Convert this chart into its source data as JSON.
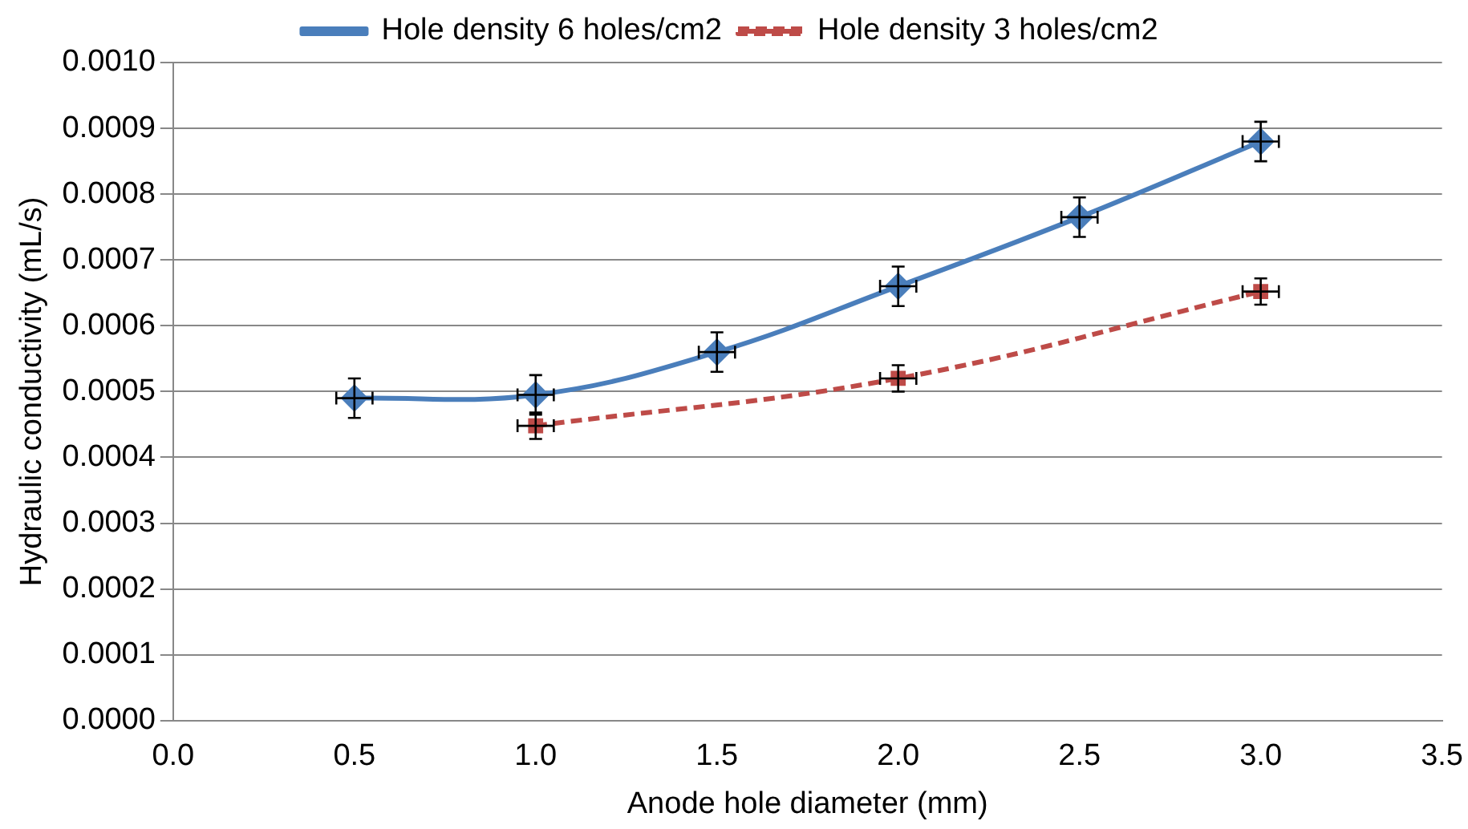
{
  "chart_data": {
    "type": "line",
    "xlabel": "Anode hole diameter (mm)",
    "ylabel": "Hydraulic conductivity (mL/s)",
    "series": [
      {
        "name": "Hole density 6 holes/cm2",
        "color": "#4a7ebb",
        "marker": "diamond",
        "line_style": "solid",
        "x": [
          0.5,
          1.0,
          1.5,
          2.0,
          2.5,
          3.0
        ],
        "values": [
          0.00049,
          0.000495,
          0.00056,
          0.00066,
          0.000765,
          0.00088
        ],
        "errors": [
          3e-05,
          3e-05,
          3e-05,
          3e-05,
          3e-05,
          3e-05
        ],
        "xerrors": [
          0.05,
          0.05,
          0.05,
          0.05,
          0.05,
          0.05
        ]
      },
      {
        "name": "Hole density 3 holes/cm2",
        "color": "#be4b48",
        "marker": "square",
        "line_style": "dashed",
        "x": [
          1.0,
          2.0,
          3.0
        ],
        "values": [
          0.000448,
          0.00052,
          0.000652
        ],
        "errors": [
          2e-05,
          2e-05,
          2e-05
        ],
        "xerrors": [
          0.05,
          0.05,
          0.05
        ]
      }
    ],
    "xlim": [
      0,
      3.5
    ],
    "xticks": [
      {
        "value": 0,
        "label": "0.0"
      },
      0.5,
      {
        "value": 1,
        "label": "1.0"
      },
      1.5,
      {
        "value": 2,
        "label": "2.0"
      },
      2.5,
      {
        "value": 3,
        "label": "3.0"
      },
      3.5
    ],
    "ylim": [
      0,
      0.001
    ],
    "yticks": [
      {
        "value": 0,
        "label": "0.0000"
      },
      {
        "value": 0.0001,
        "label": "0.0001"
      },
      {
        "value": 0.0002,
        "label": "0.0002"
      },
      {
        "value": 0.0003,
        "label": "0.0003"
      },
      {
        "value": 0.0004,
        "label": "0.0004"
      },
      {
        "value": 0.0005,
        "label": "0.0005"
      },
      {
        "value": 0.0006,
        "label": "0.0006"
      },
      {
        "value": 0.0007,
        "label": "0.0007"
      },
      {
        "value": 0.0008,
        "label": "0.0008"
      },
      {
        "value": 0.0009,
        "label": "0.0009"
      },
      {
        "value": 0.001,
        "label": "0.0010"
      }
    ],
    "grid": "y",
    "legend": "top"
  }
}
